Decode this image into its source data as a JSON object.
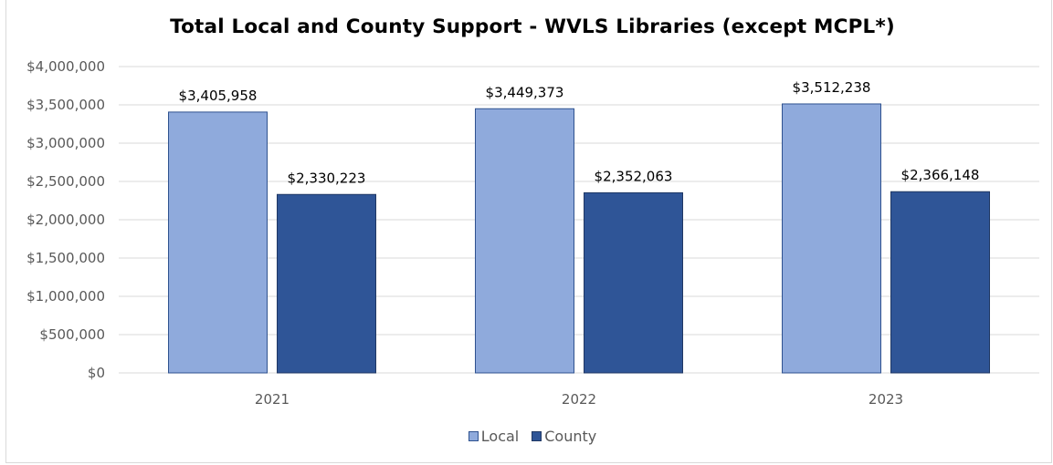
{
  "chart_data": {
    "type": "bar",
    "title": "Total Local and County Support - WVLS Libraries (except MCPL*)",
    "categories": [
      "2021",
      "2022",
      "2023"
    ],
    "series": [
      {
        "name": "Local",
        "values": [
          3405958,
          3449373,
          3512238
        ],
        "labels": [
          "$3,405,958",
          "$3,449,373",
          "$3,512,238"
        ],
        "color": "#8faadc",
        "border": "#2f528f"
      },
      {
        "name": "County",
        "values": [
          2330223,
          2352063,
          2366148
        ],
        "labels": [
          "$2,330,223",
          "$2,352,063",
          "$2,366,148"
        ],
        "color": "#2f5597",
        "border": "#203864"
      }
    ],
    "ylim": [
      0,
      4000000
    ],
    "yticks": [
      0,
      500000,
      1000000,
      1500000,
      2000000,
      2500000,
      3000000,
      3500000,
      4000000
    ],
    "ytick_labels": [
      "$0",
      "$500,000",
      "$1,000,000",
      "$1,500,000",
      "$2,000,000",
      "$2,500,000",
      "$3,000,000",
      "$3,500,000",
      "$4,000,000"
    ],
    "xlabel": "",
    "ylabel": "",
    "grid": true,
    "legend_position": "bottom",
    "gridline_color": "#d9d9d9"
  }
}
